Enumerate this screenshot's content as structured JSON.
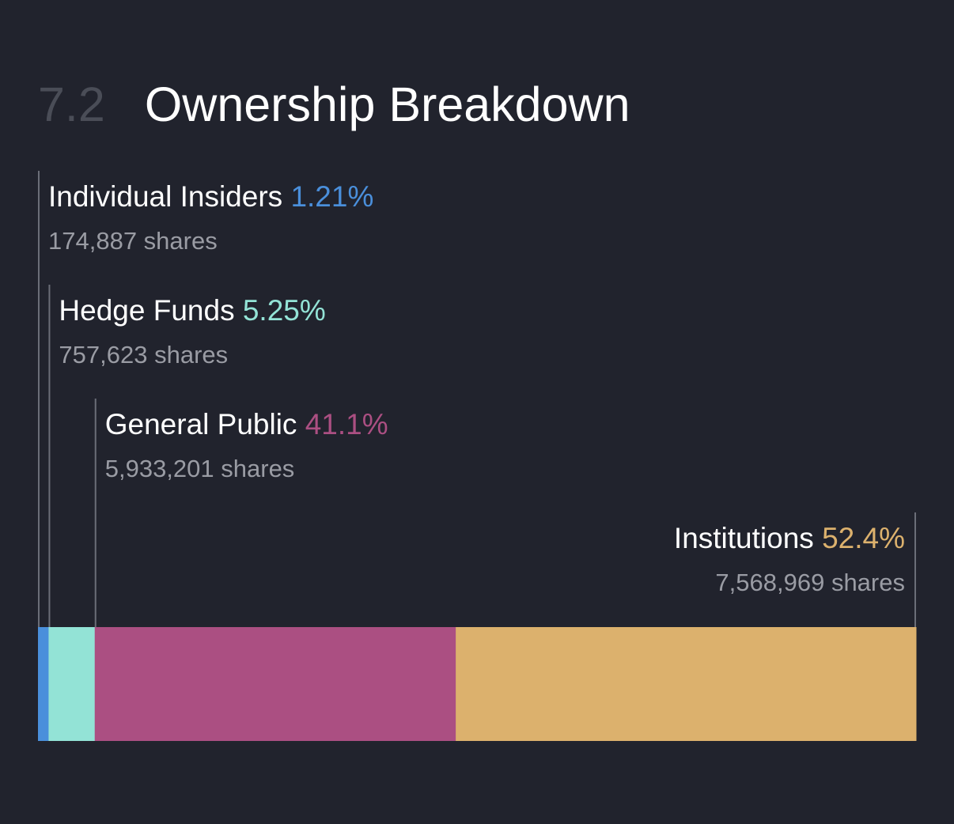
{
  "header": {
    "section_number": "7.2",
    "title": "Ownership Breakdown"
  },
  "chart_data": {
    "type": "bar",
    "orientation": "horizontal-stacked",
    "title": "Ownership Breakdown",
    "categories": [
      "Individual Insiders",
      "Hedge Funds",
      "General Public",
      "Institutions"
    ],
    "values": [
      1.21,
      5.25,
      41.1,
      52.4
    ],
    "value_labels": [
      "1.21%",
      "5.25%",
      "41.1%",
      "52.4%"
    ],
    "shares": [
      "174,887 shares",
      "757,623 shares",
      "5,933,201 shares",
      "7,568,969 shares"
    ],
    "colors": [
      "#4a8fdb",
      "#93e3d6",
      "#ab4f82",
      "#dcb16d"
    ],
    "units": "%",
    "xlabel": "",
    "ylabel": ""
  },
  "theme": {
    "background": "#21232d",
    "leader_line": "#6b6e78"
  }
}
